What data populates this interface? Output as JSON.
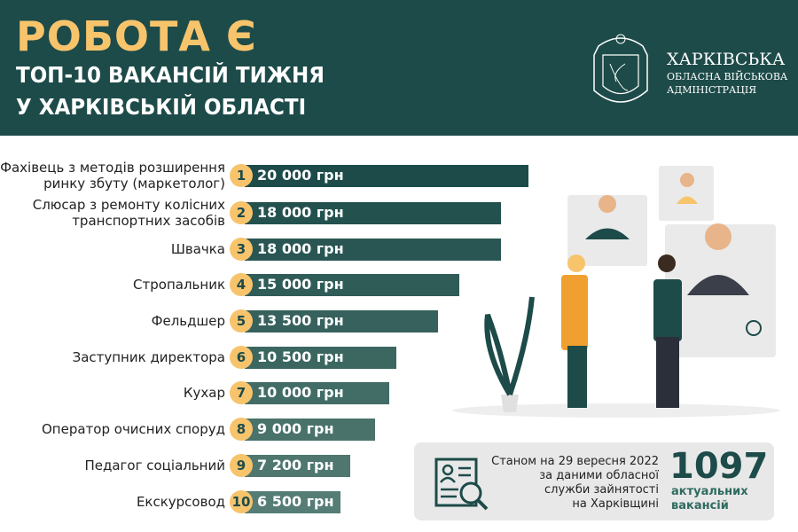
{
  "header": {
    "title": "РОБОТА Є",
    "subtitle_line1": "ТОП-10 ВАКАНСІЙ ТИЖНЯ",
    "subtitle_line2": "У ХАРКІВСЬКІЙ ОБЛАСТІ"
  },
  "logo": {
    "line1": "ХАРКІВСЬКА",
    "line2": "ОБЛАСНА ВІЙСЬКОВА",
    "line3": "АДМІНІСТРАЦІЯ"
  },
  "colors": {
    "header": "#1d4b49",
    "accent": "#f7c46c",
    "bar_dark": "#1d4b49",
    "bar_light": "#557d75"
  },
  "chart_data": {
    "type": "bar",
    "orientation": "horizontal",
    "unit": "грн",
    "categories": [
      "Фахівець з методів розширення ринку збуту (маркетолог)",
      "Слюсар з ремонту колісних транспортних засобів",
      "Швачка",
      "Стропальник",
      "Фельдшер",
      "Заступник директора",
      "Кухар",
      "Оператор очисних споруд",
      "Педагог соціальний",
      "Екскурсовод"
    ],
    "label_lines": [
      [
        "Фахівець з методів розширення",
        "ринку збуту (маркетолог)"
      ],
      [
        "Слюсар з ремонту колісних",
        "транспортних засобів"
      ],
      [
        "Швачка"
      ],
      [
        "Стропальник"
      ],
      [
        "Фельдшер"
      ],
      [
        "Заступник директора"
      ],
      [
        "Кухар"
      ],
      [
        "Оператор очисних споруд"
      ],
      [
        "Педагог соціальний"
      ],
      [
        "Екскурсовод"
      ]
    ],
    "ranks": [
      "1",
      "2",
      "3",
      "4",
      "5",
      "6",
      "7",
      "8",
      "9",
      "10"
    ],
    "values": [
      20000,
      18000,
      18000,
      15000,
      13500,
      10500,
      10000,
      9000,
      7200,
      6500
    ],
    "value_labels": [
      "20 000 грн",
      "18 000 грн",
      "18 000 грн",
      "15 000 грн",
      "13 500 грн",
      "10 500 грн",
      "10 000 грн",
      "9 000 грн",
      "7 200 грн",
      "6 500 грн"
    ]
  },
  "info": {
    "line1": "Станом на 29 вересня 2022",
    "line2": "за даними обласної",
    "line3": "служби зайнятості",
    "line4": "на Харківщині",
    "count": "1097",
    "count_label1": "актуальних",
    "count_label2": "вакансій"
  }
}
